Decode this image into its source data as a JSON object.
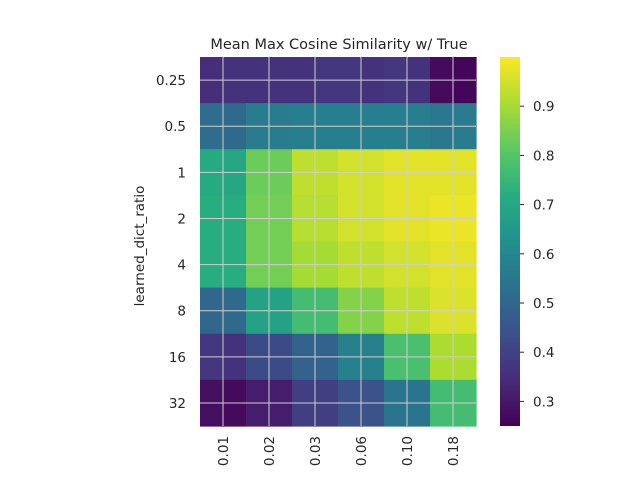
{
  "chart_data": {
    "type": "heatmap",
    "title": "Mean Max Cosine Similarity w/ True",
    "xlabel": "",
    "ylabel": "learned_dict_ratio",
    "x_categories": [
      "0.01",
      "0.02",
      "0.03",
      "0.06",
      "0.10",
      "0.18"
    ],
    "y_categories": [
      "0.25",
      "0.5",
      "1",
      "2",
      "4",
      "8",
      "16",
      "32"
    ],
    "grid": true,
    "colormap": "viridis",
    "colorbar": {
      "min": 0.25,
      "max": 1.0,
      "ticks": [
        "0.3",
        "0.4",
        "0.5",
        "0.6",
        "0.7",
        "0.8",
        "0.9"
      ]
    },
    "values": [
      [
        0.35,
        0.36,
        0.36,
        0.36,
        0.36,
        0.37,
        0.37,
        0.36,
        0.37,
        0.36,
        0.27,
        0.26
      ],
      [
        0.52,
        0.51,
        0.56,
        0.56,
        0.57,
        0.57,
        0.57,
        0.57,
        0.57,
        0.57,
        0.55,
        0.56
      ],
      [
        0.71,
        0.7,
        0.83,
        0.83,
        0.93,
        0.93,
        0.95,
        0.95,
        0.97,
        0.97,
        0.97,
        0.97
      ],
      [
        0.72,
        0.72,
        0.84,
        0.84,
        0.92,
        0.92,
        0.95,
        0.95,
        0.97,
        0.97,
        0.98,
        0.98
      ],
      [
        0.72,
        0.72,
        0.84,
        0.84,
        0.9,
        0.9,
        0.93,
        0.93,
        0.95,
        0.95,
        0.97,
        0.97
      ],
      [
        0.5,
        0.51,
        0.68,
        0.68,
        0.77,
        0.77,
        0.86,
        0.86,
        0.93,
        0.93,
        0.96,
        0.96
      ],
      [
        0.37,
        0.36,
        0.42,
        0.42,
        0.49,
        0.49,
        0.58,
        0.58,
        0.78,
        0.78,
        0.91,
        0.91
      ],
      [
        0.28,
        0.27,
        0.31,
        0.31,
        0.39,
        0.39,
        0.44,
        0.44,
        0.54,
        0.54,
        0.77,
        0.77
      ]
    ]
  }
}
